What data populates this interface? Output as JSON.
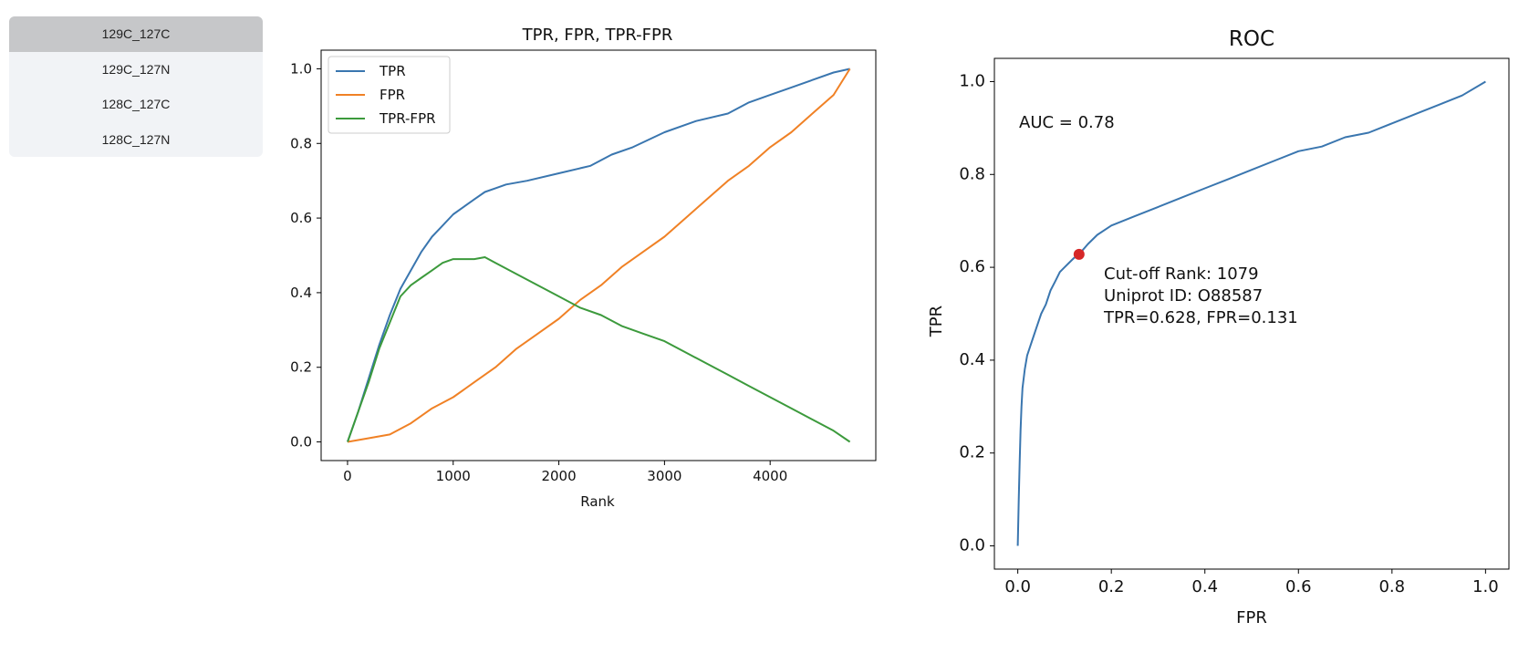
{
  "sidebar": {
    "items": [
      {
        "label": "129C_127C",
        "active": true
      },
      {
        "label": "129C_127N",
        "active": false
      },
      {
        "label": "128C_127C",
        "active": false
      },
      {
        "label": "128C_127N",
        "active": false
      }
    ]
  },
  "colors": {
    "blue": "#3a76af",
    "orange": "#f08125",
    "green": "#3c9a3c",
    "red": "#d62728",
    "active_item": "#c6c7c9"
  },
  "chart_data": [
    {
      "type": "line",
      "title": "TPR, FPR, TPR-FPR",
      "xlabel": "Rank",
      "ylabel": "",
      "xlim": [
        -250,
        5000
      ],
      "ylim": [
        -0.05,
        1.05
      ],
      "xticks": [
        0,
        1000,
        2000,
        3000,
        4000
      ],
      "yticks": [
        0.0,
        0.2,
        0.4,
        0.6,
        0.8,
        1.0
      ],
      "legend": "top-left",
      "series": [
        {
          "name": "TPR",
          "color": "#3a76af",
          "x": [
            0,
            100,
            200,
            300,
            400,
            500,
            600,
            700,
            800,
            900,
            1000,
            1100,
            1200,
            1300,
            1400,
            1500,
            1700,
            2000,
            2300,
            2500,
            2700,
            3000,
            3300,
            3600,
            3800,
            4000,
            4200,
            4400,
            4600,
            4755
          ],
          "y": [
            0.0,
            0.08,
            0.17,
            0.26,
            0.34,
            0.41,
            0.46,
            0.51,
            0.55,
            0.58,
            0.61,
            0.63,
            0.65,
            0.67,
            0.68,
            0.69,
            0.7,
            0.72,
            0.74,
            0.77,
            0.79,
            0.83,
            0.86,
            0.88,
            0.91,
            0.93,
            0.95,
            0.97,
            0.99,
            1.0
          ]
        },
        {
          "name": "FPR",
          "color": "#f08125",
          "x": [
            0,
            200,
            400,
            600,
            800,
            1000,
            1200,
            1400,
            1600,
            1800,
            2000,
            2200,
            2400,
            2600,
            2800,
            3000,
            3200,
            3400,
            3600,
            3800,
            4000,
            4200,
            4400,
            4600,
            4755
          ],
          "y": [
            0.0,
            0.01,
            0.02,
            0.05,
            0.09,
            0.12,
            0.16,
            0.2,
            0.25,
            0.29,
            0.33,
            0.38,
            0.42,
            0.47,
            0.51,
            0.55,
            0.6,
            0.65,
            0.7,
            0.74,
            0.79,
            0.83,
            0.88,
            0.93,
            1.0
          ]
        },
        {
          "name": "TPR-FPR",
          "color": "#3c9a3c",
          "x": [
            0,
            100,
            200,
            300,
            400,
            500,
            600,
            700,
            800,
            900,
            1000,
            1100,
            1200,
            1300,
            1400,
            1600,
            1800,
            2000,
            2200,
            2400,
            2600,
            2800,
            3000,
            3200,
            3400,
            3600,
            3800,
            4000,
            4200,
            4400,
            4600,
            4755
          ],
          "y": [
            0.0,
            0.08,
            0.16,
            0.25,
            0.32,
            0.39,
            0.42,
            0.44,
            0.46,
            0.48,
            0.49,
            0.49,
            0.49,
            0.495,
            0.48,
            0.45,
            0.42,
            0.39,
            0.36,
            0.34,
            0.31,
            0.29,
            0.27,
            0.24,
            0.21,
            0.18,
            0.15,
            0.12,
            0.09,
            0.06,
            0.03,
            0.0
          ]
        }
      ]
    },
    {
      "type": "line",
      "title": "ROC",
      "xlabel": "FPR",
      "ylabel": "TPR",
      "xlim": [
        -0.05,
        1.05
      ],
      "ylim": [
        -0.05,
        1.05
      ],
      "xticks": [
        0.0,
        0.2,
        0.4,
        0.6,
        0.8,
        1.0
      ],
      "yticks": [
        0.0,
        0.2,
        0.4,
        0.6,
        0.8,
        1.0
      ],
      "series": [
        {
          "name": "",
          "color": "#3a76af",
          "x": [
            0.0,
            0.002,
            0.004,
            0.006,
            0.008,
            0.01,
            0.015,
            0.02,
            0.03,
            0.04,
            0.05,
            0.06,
            0.07,
            0.08,
            0.09,
            0.1,
            0.11,
            0.12,
            0.131,
            0.15,
            0.17,
            0.2,
            0.25,
            0.3,
            0.35,
            0.4,
            0.45,
            0.5,
            0.55,
            0.6,
            0.65,
            0.7,
            0.75,
            0.8,
            0.85,
            0.9,
            0.95,
            1.0
          ],
          "y": [
            0.0,
            0.1,
            0.18,
            0.25,
            0.3,
            0.34,
            0.38,
            0.41,
            0.44,
            0.47,
            0.5,
            0.52,
            0.55,
            0.57,
            0.59,
            0.6,
            0.61,
            0.62,
            0.628,
            0.65,
            0.67,
            0.69,
            0.71,
            0.73,
            0.75,
            0.77,
            0.79,
            0.81,
            0.83,
            0.85,
            0.86,
            0.88,
            0.89,
            0.91,
            0.93,
            0.95,
            0.97,
            1.0
          ]
        }
      ],
      "marker": {
        "x": 0.131,
        "y": 0.628,
        "color": "#d62728"
      },
      "annotations": {
        "auc": "AUC = 0.78",
        "lines": [
          "Cut-off Rank: 1079",
          "Uniprot ID: O88587",
          "TPR=0.628, FPR=0.131"
        ]
      }
    }
  ]
}
